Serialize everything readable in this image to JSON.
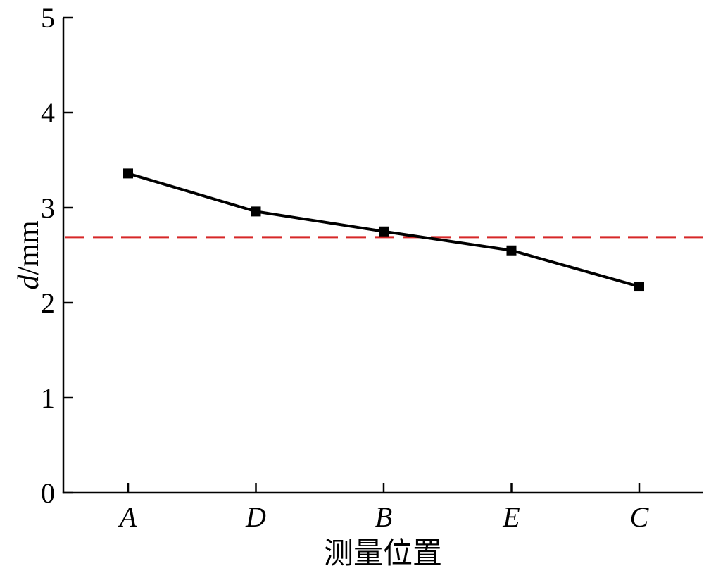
{
  "chart_data": {
    "type": "line",
    "categories": [
      "A",
      "D",
      "B",
      "E",
      "C"
    ],
    "series": [
      {
        "values": [
          3.36,
          2.96,
          2.75,
          2.55,
          2.17
        ],
        "color": "#000000",
        "marker": "square"
      }
    ],
    "reference_line": {
      "value": 2.69,
      "color": "#d62728",
      "style": "dashed"
    },
    "xlabel": "测量位置",
    "ylabel_var": "d",
    "ylabel_unit": "/mm",
    "ylim": [
      0,
      5
    ],
    "yticks": [
      0,
      1,
      2,
      3,
      4,
      5
    ],
    "grid": false
  }
}
